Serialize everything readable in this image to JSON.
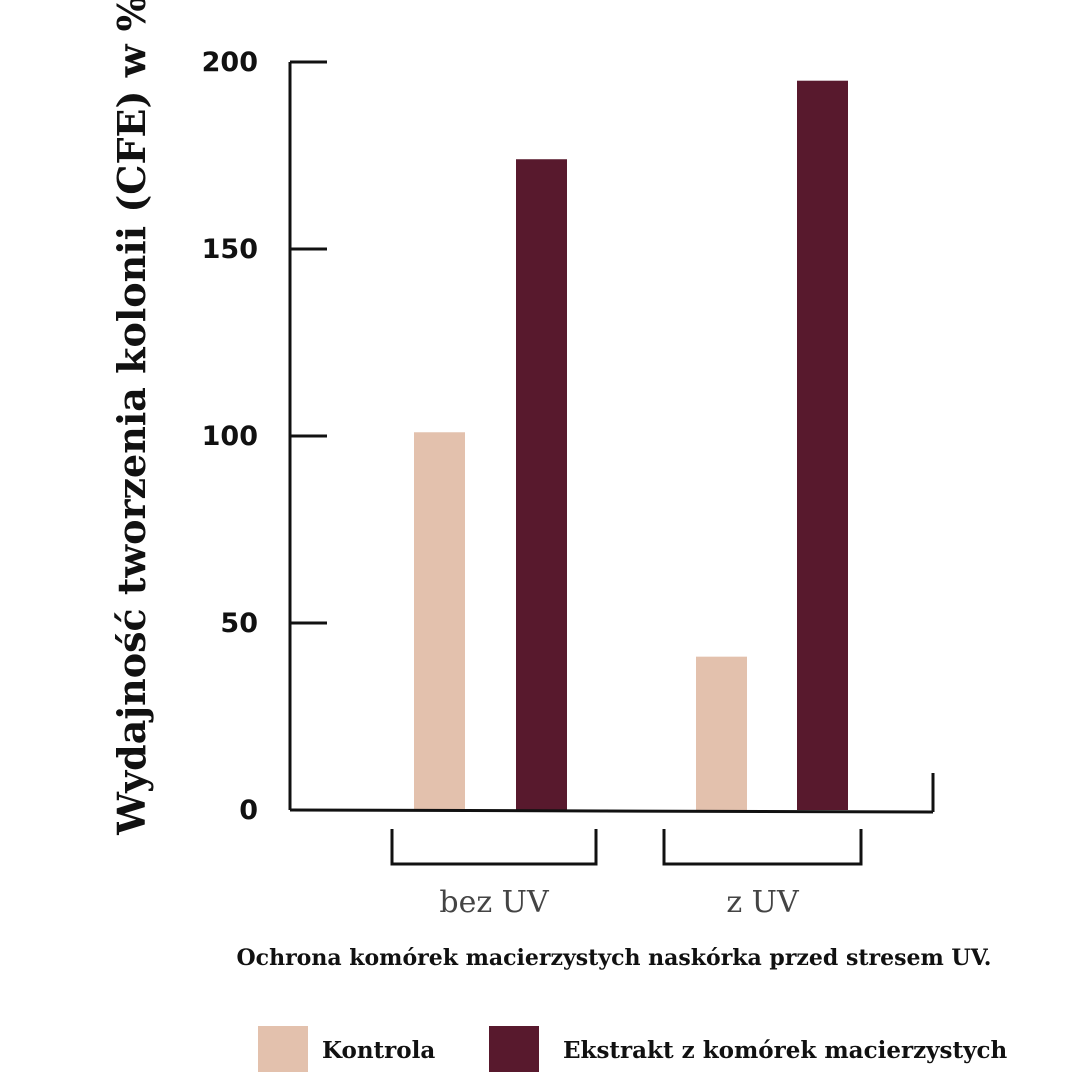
{
  "chart_data": {
    "type": "bar",
    "ylabel": "Wydajność tworzenia kolonii (CFE) w %",
    "xlabel": "Ochrona komórek macierzystych naskórka przed stresem UV.",
    "ylim": [
      0,
      200
    ],
    "yticks": [
      0,
      50,
      100,
      150,
      200
    ],
    "categories": [
      "bez UV",
      "z UV"
    ],
    "series": [
      {
        "name": "Kontrola",
        "color": "#e3c1ad",
        "values": [
          101,
          41
        ]
      },
      {
        "name": "Ekstrakt z komórek macierzystych",
        "color": "#58192d",
        "values": [
          174,
          195
        ]
      }
    ],
    "grid": false,
    "legend_position": "bottom"
  }
}
